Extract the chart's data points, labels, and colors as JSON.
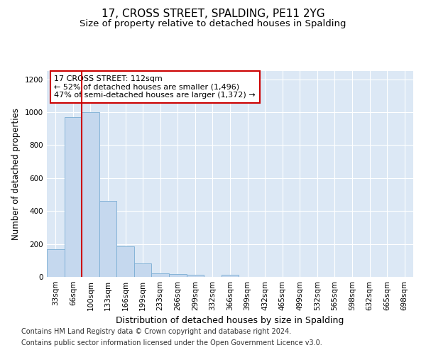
{
  "title": "17, CROSS STREET, SPALDING, PE11 2YG",
  "subtitle": "Size of property relative to detached houses in Spalding",
  "xlabel": "Distribution of detached houses by size in Spalding",
  "ylabel": "Number of detached properties",
  "categories": [
    "33sqm",
    "66sqm",
    "100sqm",
    "133sqm",
    "166sqm",
    "199sqm",
    "233sqm",
    "266sqm",
    "299sqm",
    "332sqm",
    "366sqm",
    "399sqm",
    "432sqm",
    "465sqm",
    "499sqm",
    "532sqm",
    "565sqm",
    "598sqm",
    "632sqm",
    "665sqm",
    "698sqm"
  ],
  "values": [
    170,
    970,
    1000,
    460,
    185,
    80,
    22,
    17,
    12,
    0,
    12,
    0,
    0,
    0,
    0,
    0,
    0,
    0,
    0,
    0,
    0
  ],
  "bar_color": "#c5d8ee",
  "bar_edge_color": "#7aadd4",
  "vline_color": "#cc0000",
  "vline_x_index": 2,
  "annotation_text": "17 CROSS STREET: 112sqm\n← 52% of detached houses are smaller (1,496)\n47% of semi-detached houses are larger (1,372) →",
  "annotation_box_facecolor": "#ffffff",
  "annotation_box_edgecolor": "#cc0000",
  "ylim": [
    0,
    1250
  ],
  "yticks": [
    0,
    200,
    400,
    600,
    800,
    1000,
    1200
  ],
  "footer_line1": "Contains HM Land Registry data © Crown copyright and database right 2024.",
  "footer_line2": "Contains public sector information licensed under the Open Government Licence v3.0.",
  "plot_bg_color": "#dce8f5",
  "grid_color": "#ffffff",
  "title_fontsize": 11,
  "subtitle_fontsize": 9.5,
  "ylabel_fontsize": 8.5,
  "xlabel_fontsize": 9,
  "tick_fontsize": 7.5,
  "annotation_fontsize": 8,
  "footer_fontsize": 7
}
